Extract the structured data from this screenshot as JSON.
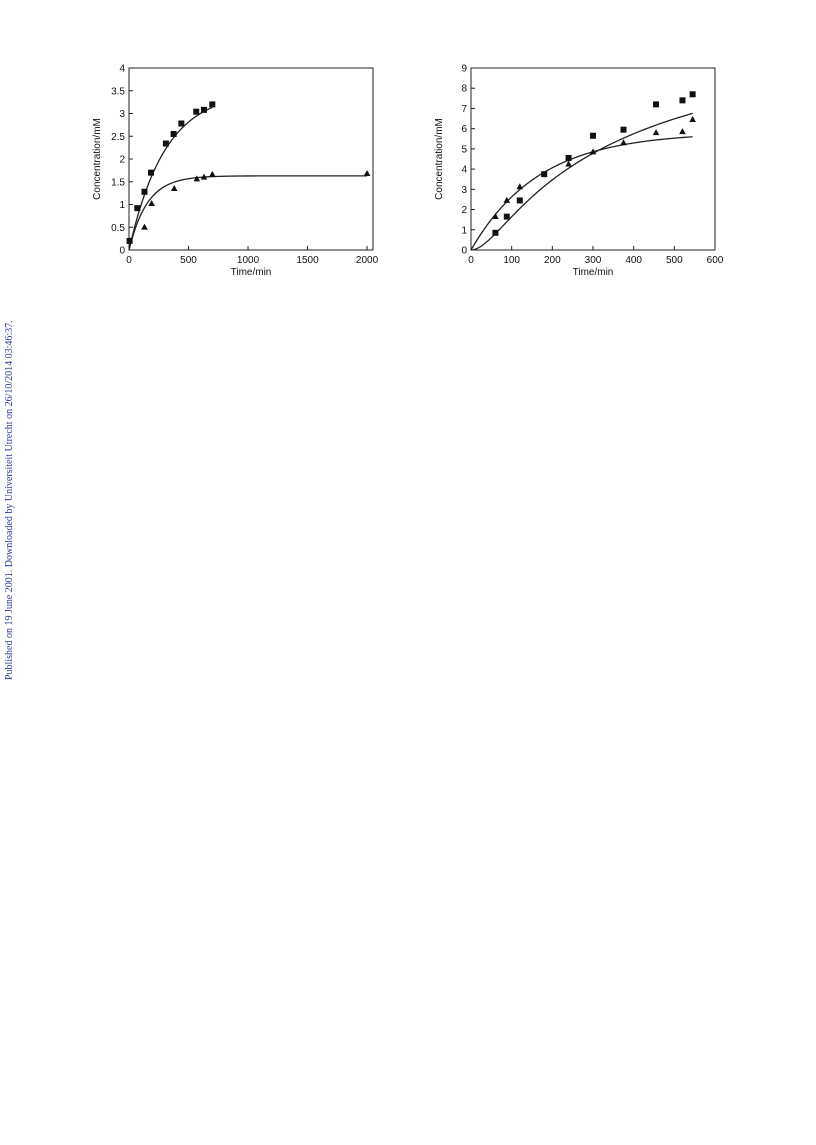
{
  "page": {
    "watermark": "Published on 19 June 2001. Downloaded by Universiteit Utrecht on 26/10/2014 03:46:37."
  },
  "chart_data": [
    {
      "type": "scatter",
      "title": "",
      "xlabel": "Time/min",
      "ylabel": "Concentration/mM",
      "xlim": [
        0,
        2050
      ],
      "ylim": [
        0,
        4
      ],
      "xticks": [
        0,
        500,
        1000,
        1500,
        2000
      ],
      "yticks": [
        0,
        0.5,
        1,
        1.5,
        2,
        2.5,
        3,
        3.5,
        4
      ],
      "grid": false,
      "series": [
        {
          "marker": "square",
          "points": [
            [
              5,
              0.2
            ],
            [
              70,
              0.92
            ],
            [
              130,
              1.28
            ],
            [
              185,
              1.7
            ],
            [
              310,
              2.34
            ],
            [
              375,
              2.55
            ],
            [
              440,
              2.78
            ],
            [
              565,
              3.04
            ],
            [
              630,
              3.08
            ],
            [
              700,
              3.2
            ]
          ],
          "fit": {
            "model": "first_order",
            "plateau": 3.48,
            "k": 0.0033
          }
        },
        {
          "marker": "triangle",
          "points": [
            [
              130,
              0.5
            ],
            [
              190,
              1.02
            ],
            [
              380,
              1.35
            ],
            [
              570,
              1.56
            ],
            [
              630,
              1.6
            ],
            [
              700,
              1.66
            ],
            [
              2000,
              1.68
            ]
          ],
          "fit": {
            "model": "first_order",
            "plateau": 1.63,
            "k": 0.0065
          }
        }
      ]
    },
    {
      "type": "scatter",
      "title": "",
      "xlabel": "Time/min",
      "ylabel": "Concentration/mM",
      "xlim": [
        0,
        600
      ],
      "ylim": [
        0,
        9
      ],
      "xticks": [
        0,
        100,
        200,
        300,
        400,
        500,
        600
      ],
      "yticks": [
        0,
        1,
        2,
        3,
        4,
        5,
        6,
        7,
        8,
        9
      ],
      "grid": false,
      "series": [
        {
          "marker": "square",
          "points": [
            [
              60,
              0.85
            ],
            [
              88,
              1.65
            ],
            [
              120,
              2.45
            ],
            [
              180,
              3.75
            ],
            [
              240,
              4.55
            ],
            [
              300,
              5.65
            ],
            [
              375,
              5.95
            ],
            [
              455,
              7.2
            ],
            [
              520,
              7.4
            ],
            [
              545,
              7.7
            ]
          ],
          "fit": {
            "model": "sigmoid_first_order",
            "plateau": 9.0,
            "k": 0.00255,
            "lag": 60
          }
        },
        {
          "marker": "triangle",
          "points": [
            [
              60,
              1.65
            ],
            [
              88,
              2.45
            ],
            [
              120,
              3.12
            ],
            [
              240,
              4.25
            ],
            [
              300,
              4.85
            ],
            [
              375,
              5.3
            ],
            [
              455,
              5.8
            ],
            [
              520,
              5.85
            ],
            [
              545,
              6.45
            ]
          ],
          "fit": {
            "model": "first_order",
            "plateau": 5.82,
            "k": 0.006
          }
        }
      ]
    }
  ]
}
